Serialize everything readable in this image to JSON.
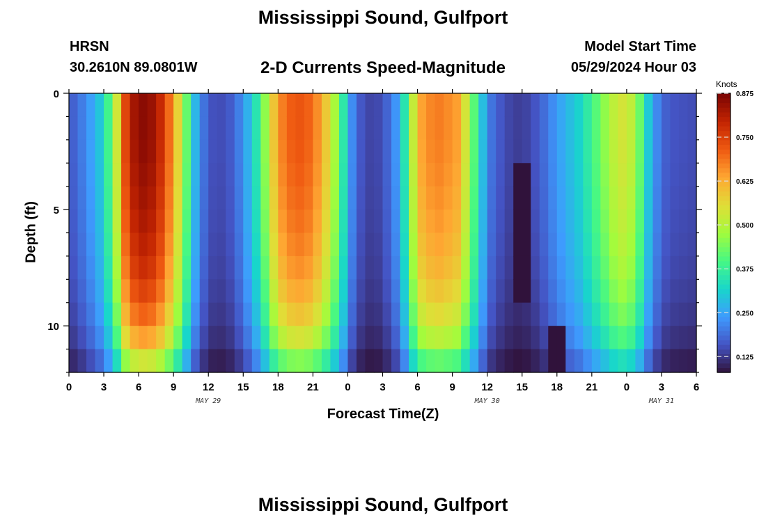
{
  "header": {
    "title": "Mississippi Sound, Gulfport",
    "station": "HRSN",
    "coords": "30.2610N  89.0801W",
    "subtitle": "2-D Currents Speed-Magnitude",
    "model_start_label": "Model Start Time",
    "model_start_value": "05/29/2024 Hour 03"
  },
  "footer": {
    "title": "Mississippi Sound, Gulfport"
  },
  "chart_data": {
    "type": "heatmap",
    "title": "2-D Currents Speed-Magnitude",
    "xlabel": "Forecast Time(Z)",
    "ylabel": "Depth (ft)",
    "x_tick_labels": [
      "0",
      "3",
      "6",
      "9",
      "12",
      "15",
      "18",
      "21",
      "0",
      "3",
      "6",
      "9",
      "12",
      "15",
      "18",
      "21",
      "0",
      "3",
      "6"
    ],
    "x_range_hours": [
      0,
      54
    ],
    "date_labels": [
      {
        "label": "MAY 29",
        "hour": 12
      },
      {
        "label": "MAY 30",
        "hour": 36
      },
      {
        "label": "MAY 31",
        "hour": 51
      }
    ],
    "y_tick_labels": [
      "0",
      "5",
      "10"
    ],
    "y_range_ft": [
      0,
      12
    ],
    "y_reversed": true,
    "colorbar": {
      "label": "Knots",
      "range": [
        0.08,
        0.875
      ],
      "ticks": [
        "0.125",
        "0.250",
        "0.375",
        "0.500",
        "0.625",
        "0.750",
        "0.875"
      ],
      "colors": [
        "#30123b",
        "#4454c4",
        "#3e9bfe",
        "#18d6cb",
        "#46f884",
        "#a2fc3c",
        "#e1dd37",
        "#fea632",
        "#ef5911",
        "#c22402",
        "#7a0403"
      ]
    },
    "surface_speed_knots": [
      [
        0,
        0.16
      ],
      [
        1.5,
        0.22
      ],
      [
        3,
        0.32
      ],
      [
        4,
        0.5
      ],
      [
        5,
        0.78
      ],
      [
        6,
        0.86
      ],
      [
        7,
        0.85
      ],
      [
        8,
        0.78
      ],
      [
        9,
        0.65
      ],
      [
        10,
        0.45
      ],
      [
        11,
        0.25
      ],
      [
        12,
        0.16
      ],
      [
        13,
        0.15
      ],
      [
        14,
        0.17
      ],
      [
        15,
        0.23
      ],
      [
        16,
        0.33
      ],
      [
        17,
        0.48
      ],
      [
        18,
        0.66
      ],
      [
        19.5,
        0.73
      ],
      [
        21,
        0.7
      ],
      [
        22.5,
        0.55
      ],
      [
        23.5,
        0.38
      ],
      [
        24.5,
        0.2
      ],
      [
        25.5,
        0.14
      ],
      [
        27,
        0.15
      ],
      [
        28.5,
        0.26
      ],
      [
        29.5,
        0.5
      ],
      [
        30.5,
        0.66
      ],
      [
        32,
        0.68
      ],
      [
        33.5,
        0.64
      ],
      [
        34.5,
        0.48
      ],
      [
        35.5,
        0.3
      ],
      [
        36.5,
        0.18
      ],
      [
        38,
        0.14
      ],
      [
        39,
        0.13
      ],
      [
        40.5,
        0.17
      ],
      [
        42,
        0.24
      ],
      [
        44,
        0.32
      ],
      [
        45.5,
        0.42
      ],
      [
        47,
        0.52
      ],
      [
        48,
        0.55
      ],
      [
        49,
        0.45
      ],
      [
        50,
        0.28
      ],
      [
        51,
        0.18
      ],
      [
        52,
        0.16
      ],
      [
        54,
        0.15
      ]
    ],
    "depth_profile_factor": [
      [
        0,
        1.0
      ],
      [
        2,
        1.0
      ],
      [
        4,
        0.98
      ],
      [
        6,
        0.95
      ],
      [
        8,
        0.9
      ],
      [
        10,
        0.8
      ],
      [
        11,
        0.7
      ],
      [
        12,
        0.55
      ]
    ],
    "min_speed_zones": [
      {
        "hour_range": [
          38,
          40
        ],
        "depth_range_ft": [
          3.5,
          8.5
        ],
        "speed_knots": 0.08
      },
      {
        "hour_range": [
          41,
          43
        ],
        "depth_range_ft": [
          10.5,
          12
        ],
        "speed_knots": 0.08
      }
    ]
  }
}
